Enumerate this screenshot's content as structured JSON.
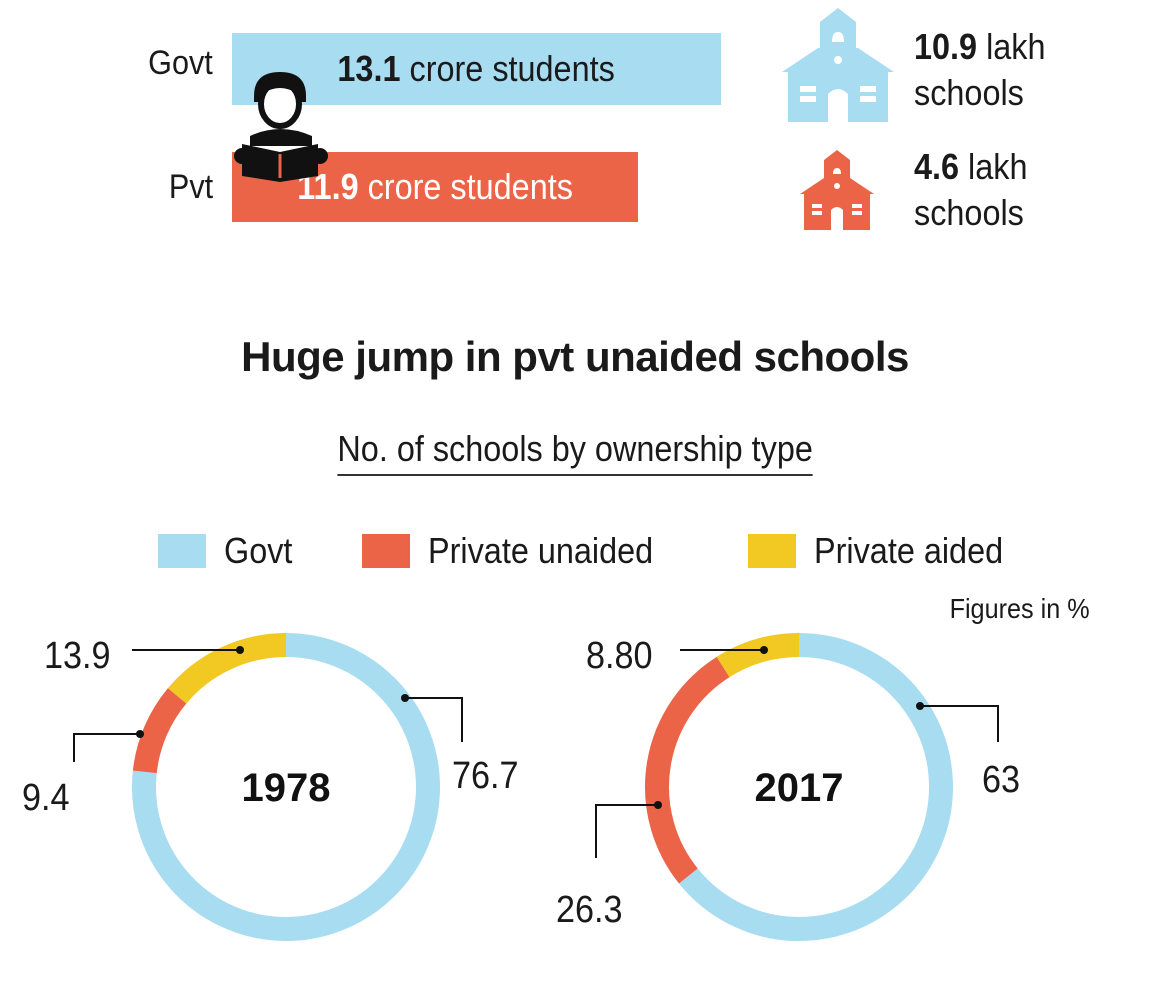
{
  "students": {
    "govt": {
      "label": "Govt",
      "value": "13.1",
      "unit_text": "crore students",
      "amount": 13.1
    },
    "pvt": {
      "label": "Pvt",
      "value": "11.9",
      "unit_text": "crore students",
      "amount": 11.9
    }
  },
  "schools": {
    "govt": {
      "value": "10.9",
      "unit": "lakh",
      "line2": "schools"
    },
    "pvt": {
      "value": "4.6",
      "unit": "lakh",
      "line2": "schools"
    }
  },
  "headline": "Huge jump in pvt unaided schools",
  "subtitle": "No. of schools by ownership type",
  "legend": [
    "Govt",
    "Private unaided",
    "Private aided"
  ],
  "note": "Figures in %",
  "colors": {
    "govt": "#a8dcf1",
    "private_unaided": "#ec6448",
    "private_aided": "#f2c823",
    "dark": "#111111"
  },
  "icons": [
    "student-reading-icon",
    "govt-school-building-icon",
    "pvt-school-building-icon"
  ],
  "chart_data": [
    {
      "type": "pie",
      "variant": "donut",
      "center_label": "1978",
      "categories": [
        "Govt",
        "Private unaided",
        "Private aided"
      ],
      "values": [
        76.7,
        9.4,
        13.9
      ],
      "value_labels": [
        "76.7",
        "9.4",
        "13.9"
      ]
    },
    {
      "type": "pie",
      "variant": "donut",
      "center_label": "2017",
      "categories": [
        "Govt",
        "Private unaided",
        "Private aided"
      ],
      "values": [
        63,
        26.3,
        8.8
      ],
      "value_labels": [
        "63",
        "26.3",
        "8.80"
      ]
    }
  ]
}
